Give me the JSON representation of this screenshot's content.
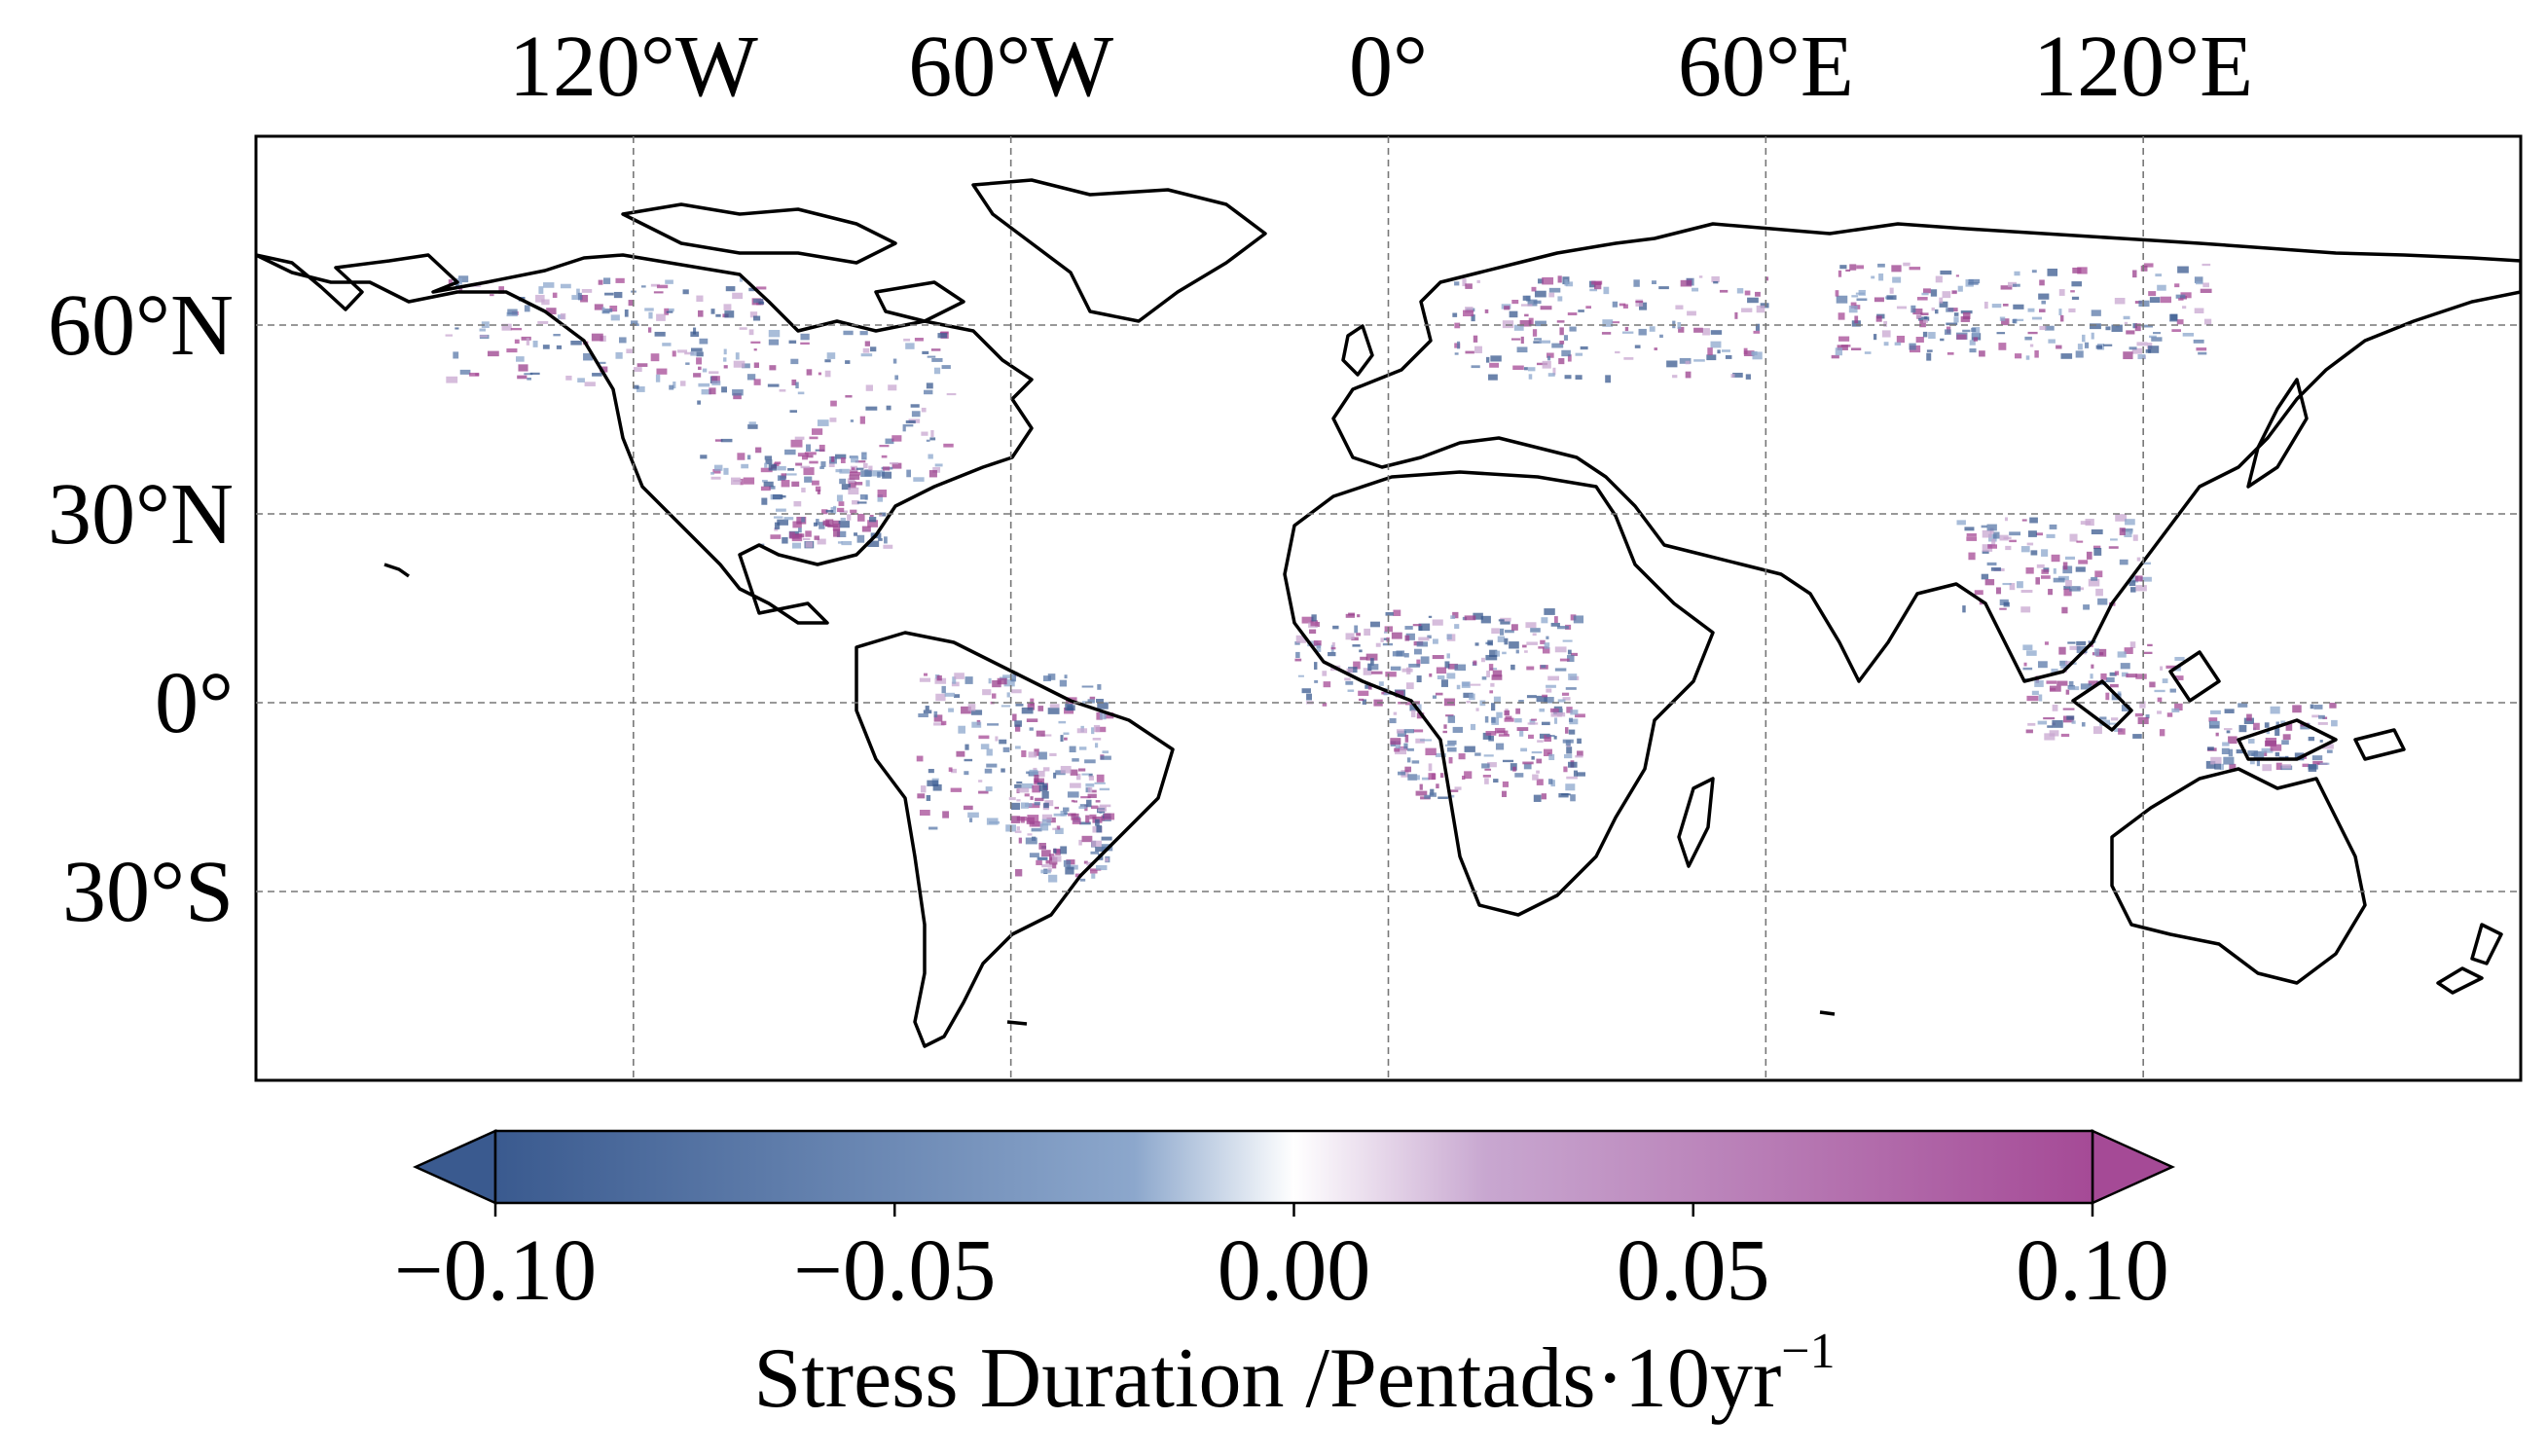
{
  "map": {
    "lon_ticks": [
      {
        "lon": -120,
        "label": "120°W"
      },
      {
        "lon": -60,
        "label": "60°W"
      },
      {
        "lon": 0,
        "label": "0°"
      },
      {
        "lon": 60,
        "label": "60°E"
      },
      {
        "lon": 120,
        "label": "120°E"
      }
    ],
    "lat_ticks": [
      {
        "lat": 60,
        "label": "60°N"
      },
      {
        "lat": 30,
        "label": "30°N"
      },
      {
        "lat": 0,
        "label": "0°"
      },
      {
        "lat": -30,
        "label": "30°S"
      }
    ],
    "extent": {
      "lon": [
        -180,
        180
      ],
      "lat": [
        -60,
        90
      ]
    },
    "gridlines": true
  },
  "colorbar": {
    "label_main": "Stress Duration /Pentads·10yr",
    "label_sup": "−1",
    "ticks": [
      {
        "value": -0.1,
        "label": "−0.10"
      },
      {
        "value": -0.05,
        "label": "−0.05"
      },
      {
        "value": 0.0,
        "label": "0.00"
      },
      {
        "value": 0.05,
        "label": "0.05"
      },
      {
        "value": 0.1,
        "label": "0.10"
      }
    ],
    "range": [
      -0.1,
      0.1
    ],
    "extend": "both",
    "colors": [
      "#3a5a8f",
      "#8ca7cc",
      "#ffffff",
      "#c8a7d0",
      "#a54a96"
    ]
  }
}
